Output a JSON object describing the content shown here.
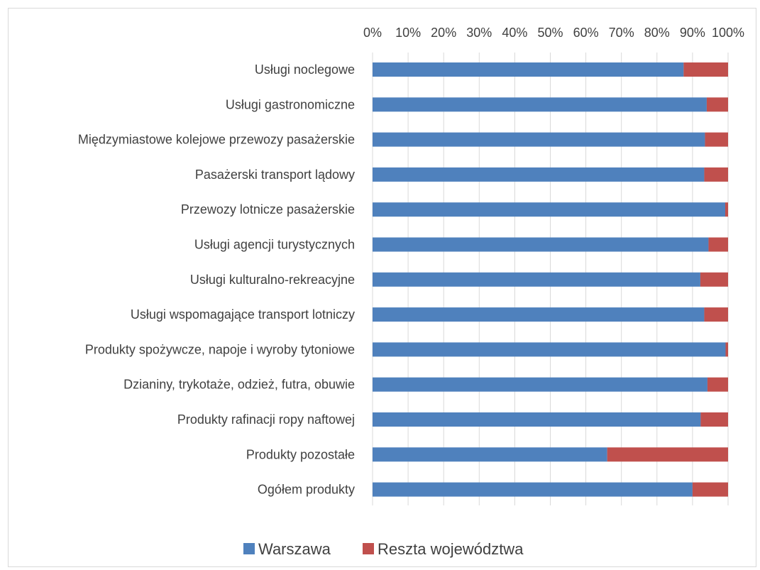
{
  "chart_data": {
    "type": "bar",
    "orientation": "horizontal",
    "stacked": "percent",
    "title": "",
    "xlabel": "",
    "ylabel": "",
    "xlim": [
      0,
      100
    ],
    "grid": true,
    "legend_position": "bottom",
    "x_ticks": [
      "0%",
      "10%",
      "20%",
      "30%",
      "40%",
      "50%",
      "60%",
      "70%",
      "80%",
      "90%",
      "100%"
    ],
    "categories": [
      "Usługi noclegowe",
      "Usługi gastronomiczne",
      "Międzymiastowe kolejowe przewozy pasażerskie",
      "Pasażerski transport lądowy",
      "Przewozy lotnicze pasażerskie",
      "Usługi agencji turystycznych",
      "Usługi kulturalno-rekreacyjne",
      "Usługi wspomagające transport lotniczy",
      "Produkty spożywcze, napoje i wyroby tytoniowe",
      "Dzianiny, trykotaże, odzież, futra, obuwie",
      "Produkty rafinacji ropy naftowej",
      "Produkty pozostałe",
      "Ogółem produkty"
    ],
    "series": [
      {
        "name": "Warszawa",
        "color": "#4f81bd",
        "values": [
          87.5,
          94,
          93.5,
          93.3,
          99.2,
          94.5,
          92.2,
          93.3,
          99.3,
          94.2,
          92.3,
          66,
          90
        ]
      },
      {
        "name": "Reszta województwa",
        "color": "#c0504d",
        "values": [
          12.5,
          6,
          6.5,
          6.7,
          0.8,
          5.5,
          7.8,
          6.7,
          0.7,
          5.8,
          7.7,
          34,
          10
        ]
      }
    ]
  }
}
